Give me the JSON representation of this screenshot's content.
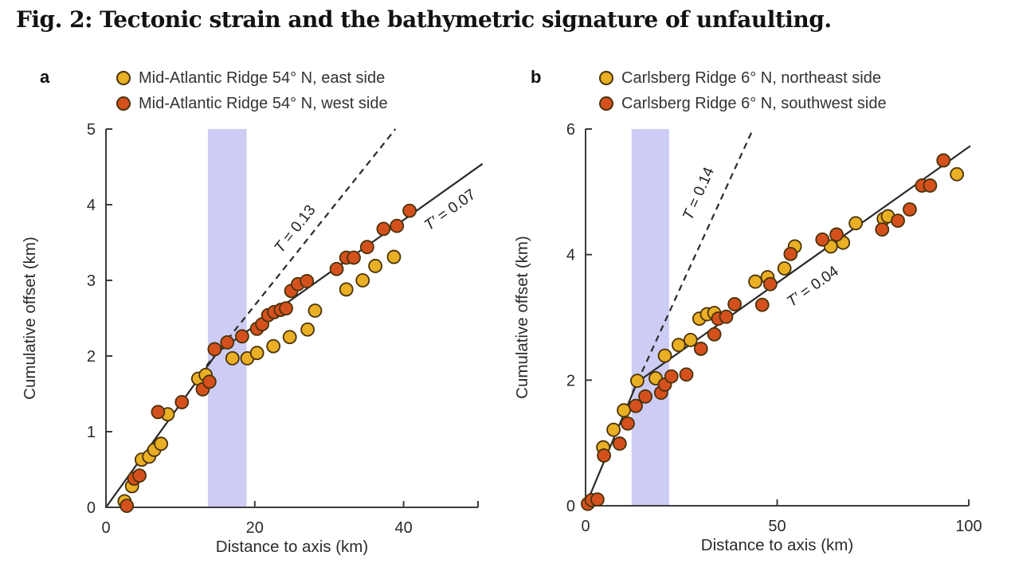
{
  "figure": {
    "title": "Fig. 2: Tectonic strain and the bathymetric signature of unfaulting."
  },
  "colors": {
    "series_yellow": "#E9AF25",
    "series_red": "#D4511E",
    "dot_stroke": "#4a3208",
    "band": "#cdccf4",
    "axis": "#3c3c3c",
    "line": "#2a2a2a",
    "text": "#2b2b2b"
  },
  "chart_data": [
    {
      "type": "scatter",
      "panel_label": "a",
      "xlabel": "Distance to axis (km)",
      "ylabel": "Cumulative offset (km)",
      "xlim": [
        0,
        50
      ],
      "ylim": [
        0,
        5
      ],
      "xticks": [
        0,
        20,
        40
      ],
      "yticks": [
        0,
        1,
        2,
        3,
        4,
        5
      ],
      "band_x": [
        13.7,
        18.9
      ],
      "series": [
        {
          "name": "Mid-Atlantic Ridge 54° N, east side",
          "color_key": "series_yellow",
          "points": [
            [
              2.5,
              0.08
            ],
            [
              3.5,
              0.28
            ],
            [
              4.8,
              0.63
            ],
            [
              5.8,
              0.67
            ],
            [
              6.5,
              0.76
            ],
            [
              7.4,
              0.84
            ],
            [
              8.3,
              1.23
            ],
            [
              12.4,
              1.7
            ],
            [
              13.4,
              1.75
            ],
            [
              17.0,
              1.97
            ],
            [
              19.0,
              1.97
            ],
            [
              20.3,
              2.04
            ],
            [
              22.5,
              2.13
            ],
            [
              24.7,
              2.25
            ],
            [
              27.1,
              2.35
            ],
            [
              28.1,
              2.6
            ],
            [
              32.3,
              2.88
            ],
            [
              34.5,
              3.0
            ],
            [
              36.2,
              3.19
            ],
            [
              38.7,
              3.31
            ]
          ]
        },
        {
          "name": "Mid-Atlantic Ridge 54° N, west side",
          "color_key": "series_red",
          "points": [
            [
              2.8,
              0.02
            ],
            [
              3.8,
              0.38
            ],
            [
              4.5,
              0.42
            ],
            [
              7.0,
              1.26
            ],
            [
              10.2,
              1.39
            ],
            [
              13.0,
              1.56
            ],
            [
              13.9,
              1.66
            ],
            [
              14.6,
              2.09
            ],
            [
              16.3,
              2.18
            ],
            [
              18.3,
              2.26
            ],
            [
              20.3,
              2.36
            ],
            [
              21.0,
              2.42
            ],
            [
              21.8,
              2.54
            ],
            [
              22.6,
              2.58
            ],
            [
              23.5,
              2.61
            ],
            [
              24.2,
              2.63
            ],
            [
              24.9,
              2.86
            ],
            [
              25.8,
              2.95
            ],
            [
              27.0,
              2.99
            ],
            [
              31.0,
              3.15
            ],
            [
              32.3,
              3.3
            ],
            [
              33.3,
              3.3
            ],
            [
              35.1,
              3.44
            ],
            [
              37.3,
              3.68
            ],
            [
              39.1,
              3.72
            ],
            [
              40.8,
              3.92
            ]
          ]
        }
      ],
      "lines": [
        {
          "style": "solid",
          "label": "T′ = 0.07",
          "points": [
            [
              0,
              0
            ],
            [
              15,
              2.05
            ],
            [
              50.6,
              4.54
            ]
          ]
        },
        {
          "style": "dashed",
          "label": "T = 0.13",
          "points": [
            [
              13.5,
              1.87
            ],
            [
              38.9,
              5.0
            ]
          ]
        }
      ],
      "annotations": [
        {
          "text": "T = 0.13",
          "x": 25.9,
          "y": 3.64,
          "slope": 0.125
        },
        {
          "text": "T′ = 0.07",
          "x": 46.6,
          "y": 3.88,
          "slope": 0.071
        }
      ]
    },
    {
      "type": "scatter",
      "panel_label": "b",
      "xlabel": "Distance to axis (km)",
      "ylabel": "Cumulative offset (km)",
      "xlim": [
        0,
        100
      ],
      "ylim": [
        0,
        6
      ],
      "xticks": [
        0,
        50,
        100
      ],
      "yticks": [
        0,
        2,
        4,
        6
      ],
      "band_x": [
        12.0,
        21.8
      ],
      "series": [
        {
          "name": "Carlsberg Ridge 6° N, northeast side",
          "color_key": "series_yellow",
          "points": [
            [
              4.6,
              0.93
            ],
            [
              7.3,
              1.21
            ],
            [
              10.0,
              1.52
            ],
            [
              13.5,
              1.99
            ],
            [
              18.3,
              2.03
            ],
            [
              20.7,
              2.39
            ],
            [
              24.3,
              2.56
            ],
            [
              27.4,
              2.64
            ],
            [
              29.7,
              2.98
            ],
            [
              31.7,
              3.05
            ],
            [
              33.6,
              3.07
            ],
            [
              44.3,
              3.57
            ],
            [
              47.5,
              3.64
            ],
            [
              51.9,
              3.78
            ],
            [
              54.6,
              4.13
            ],
            [
              64.0,
              4.13
            ],
            [
              67.2,
              4.19
            ],
            [
              70.5,
              4.5
            ],
            [
              77.8,
              4.57
            ],
            [
              78.9,
              4.61
            ],
            [
              96.9,
              5.28
            ]
          ]
        },
        {
          "name": "Carlsberg Ridge 6° N, southwest side",
          "color_key": "series_red",
          "points": [
            [
              0.6,
              0.03
            ],
            [
              1.6,
              0.09
            ],
            [
              3.1,
              0.1
            ],
            [
              4.8,
              0.8
            ],
            [
              8.9,
              0.99
            ],
            [
              11.0,
              1.31
            ],
            [
              13.1,
              1.59
            ],
            [
              15.6,
              1.74
            ],
            [
              19.7,
              1.8
            ],
            [
              20.7,
              1.93
            ],
            [
              22.4,
              2.06
            ],
            [
              26.3,
              2.09
            ],
            [
              30.1,
              2.5
            ],
            [
              33.6,
              2.73
            ],
            [
              34.6,
              2.98
            ],
            [
              36.7,
              3.01
            ],
            [
              38.9,
              3.21
            ],
            [
              46.1,
              3.2
            ],
            [
              48.2,
              3.53
            ],
            [
              53.5,
              4.01
            ],
            [
              61.8,
              4.24
            ],
            [
              65.5,
              4.32
            ],
            [
              77.4,
              4.4
            ],
            [
              81.5,
              4.54
            ],
            [
              84.6,
              4.72
            ],
            [
              87.8,
              5.1
            ],
            [
              89.9,
              5.1
            ],
            [
              93.4,
              5.5
            ]
          ]
        }
      ],
      "lines": [
        {
          "style": "solid",
          "label": "T′ = 0.04",
          "points": [
            [
              0,
              0
            ],
            [
              13.5,
              1.97
            ],
            [
              100.4,
              5.73
            ]
          ]
        },
        {
          "style": "dashed",
          "label": "T = 0.14",
          "points": [
            [
              12.3,
              1.81
            ],
            [
              43.7,
              6.0
            ]
          ]
        }
      ],
      "annotations": [
        {
          "text": "T = 0.14",
          "x": 30.6,
          "y": 4.94,
          "slope": 0.137
        },
        {
          "text": "T′ = 0.04",
          "x": 60.0,
          "y": 3.43,
          "slope": 0.043
        }
      ]
    }
  ]
}
